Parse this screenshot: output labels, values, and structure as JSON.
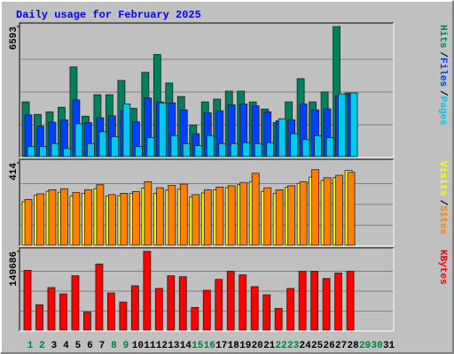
{
  "chart_data": [
    {
      "type": "bar",
      "title": "Daily usage for February 2025",
      "categories": [
        "1",
        "2",
        "3",
        "4",
        "5",
        "6",
        "7",
        "8",
        "9",
        "10",
        "11",
        "12",
        "13",
        "14",
        "15",
        "16",
        "17",
        "18",
        "19",
        "20",
        "21",
        "22",
        "23",
        "24",
        "25",
        "26",
        "27",
        "28",
        "29",
        "30",
        "31"
      ],
      "category_colors": [
        "#008040",
        "#008040",
        "#000000",
        "#000000",
        "#000000",
        "#000000",
        "#000000",
        "#008040",
        "#008040",
        "#000000",
        "#000000",
        "#000000",
        "#000000",
        "#000000",
        "#008040",
        "#008040",
        "#000000",
        "#000000",
        "#000000",
        "#000000",
        "#000000",
        "#008040",
        "#008040",
        "#000000",
        "#000000",
        "#000000",
        "#000000",
        "#000000",
        "#008040",
        "#008040",
        "#000000"
      ],
      "ylim": [
        0,
        6593
      ],
      "yticks": [
        6593
      ],
      "legend_separator": "/",
      "series": [
        {
          "name": "Hits",
          "color": "#00805c",
          "values": [
            2800,
            2170,
            2300,
            2530,
            4560,
            2080,
            3160,
            3160,
            3880,
            2480,
            4290,
            5190,
            3750,
            3070,
            1630,
            2800,
            2940,
            3340,
            3340,
            2800,
            2440,
            1760,
            2800,
            3970,
            2800,
            3300,
            6593,
            3250,
            null,
            null,
            null
          ]
        },
        {
          "name": "Files",
          "color": "#0040ff",
          "values": [
            2150,
            1580,
            1780,
            1900,
            2900,
            1760,
            2000,
            2100,
            2350,
            1800,
            3000,
            2800,
            2750,
            2400,
            1200,
            2250,
            2350,
            2650,
            2700,
            2600,
            2300,
            1850,
            1900,
            2700,
            2400,
            2450,
            3100,
            3200,
            null,
            null,
            null
          ]
        },
        {
          "name": "Pages",
          "color": "#00c8f0",
          "values": [
            550,
            550,
            700,
            450,
            1700,
            700,
            1300,
            1050,
            2700,
            550,
            1000,
            2750,
            1100,
            700,
            600,
            1100,
            700,
            700,
            750,
            700,
            750,
            1950,
            1200,
            900,
            1100,
            1000,
            3200,
            3250,
            null,
            null,
            null
          ]
        }
      ]
    },
    {
      "type": "bar",
      "ylim": [
        0,
        414
      ],
      "yticks": [
        414
      ],
      "legend_separator": "/",
      "series": [
        {
          "name": "Visits",
          "color": "#ffff00",
          "values": [
            220,
            252,
            272,
            268,
            248,
            262,
            285,
            248,
            250,
            262,
            288,
            262,
            278,
            283,
            245,
            264,
            280,
            290,
            305,
            320,
            272,
            262,
            292,
            312,
            343,
            326,
            340,
            376,
            null,
            null,
            null
          ]
        },
        {
          "name": "Sites",
          "color": "#ff8000",
          "values": [
            232,
            260,
            280,
            285,
            266,
            280,
            305,
            256,
            262,
            271,
            320,
            290,
            301,
            308,
            256,
            280,
            293,
            300,
            316,
            362,
            290,
            280,
            300,
            320,
            380,
            340,
            352,
            367,
            null,
            null,
            null
          ]
        }
      ]
    },
    {
      "type": "bar",
      "ylim": [
        0,
        149686
      ],
      "yticks": [
        149686
      ],
      "series": [
        {
          "name": "KBytes",
          "color": "#ff0000",
          "values": [
            114000,
            49300,
            81600,
            69700,
            103800,
            35700,
            125900,
            71400,
            54400,
            85000,
            149686,
            80000,
            103800,
            102000,
            44200,
            76500,
            97000,
            112300,
            105500,
            83300,
            68000,
            42500,
            80000,
            112300,
            112300,
            98700,
            108900,
            112300,
            null,
            null,
            null
          ]
        }
      ]
    }
  ]
}
